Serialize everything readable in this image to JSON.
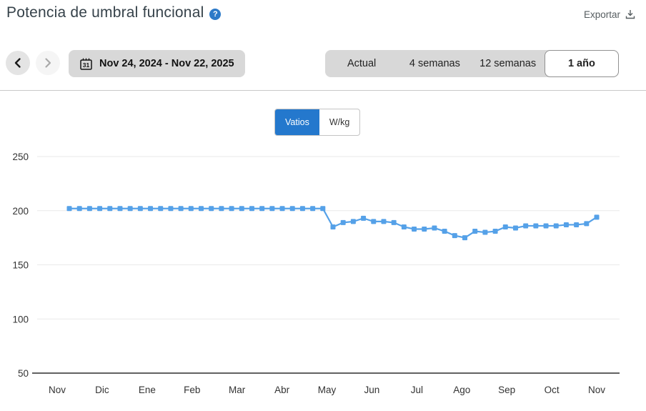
{
  "header": {
    "title": "Potencia de umbral funcional",
    "help_glyph": "?",
    "export_label": "Exportar"
  },
  "nav": {
    "calendar_icon_text": "31",
    "date_range": "Nov 24, 2024 - Nov 22, 2025",
    "tabs": [
      {
        "label": "Actual",
        "selected": false
      },
      {
        "label": "4 semanas",
        "selected": false
      },
      {
        "label": "12 semanas",
        "selected": false
      },
      {
        "label": "1 año",
        "selected": true
      }
    ]
  },
  "unit_toggle": {
    "options": [
      {
        "label": "Vatios",
        "selected": true
      },
      {
        "label": "W/kg",
        "selected": false
      }
    ]
  },
  "colors": {
    "series_blue": "#55a1e8",
    "accent_blue": "#2478cd",
    "help_icon_blue": "#2d7ac8",
    "gridline": "#e9e9e9",
    "axis": "#2f2f2f",
    "tick_text": "#333333"
  },
  "chart_data": {
    "type": "line",
    "title": "Potencia de umbral funcional",
    "unit": "vatios",
    "marker": "square",
    "grid": true,
    "legend": "none",
    "x_months": [
      "Nov",
      "Dic",
      "Ene",
      "Feb",
      "Mar",
      "Abr",
      "May",
      "Jun",
      "Jul",
      "Ago",
      "Sep",
      "Oct",
      "Nov"
    ],
    "y_ticks": [
      50,
      100,
      150,
      200,
      250
    ],
    "ylim": [
      50,
      260
    ],
    "values": [
      202,
      202,
      202,
      202,
      202,
      202,
      202,
      202,
      202,
      202,
      202,
      202,
      202,
      202,
      202,
      202,
      202,
      202,
      202,
      202,
      202,
      202,
      202,
      202,
      202,
      202,
      185,
      189,
      190,
      193,
      190,
      190,
      189,
      185,
      183,
      183,
      184,
      181,
      177,
      175,
      181,
      180,
      181,
      185,
      184,
      186,
      186,
      186,
      186,
      187,
      187,
      188,
      194
    ]
  }
}
